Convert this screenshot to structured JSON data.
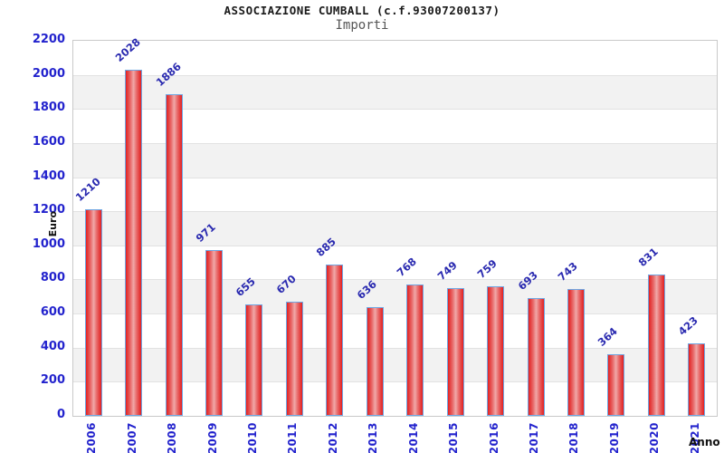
{
  "chart_data": {
    "type": "bar",
    "title": "ASSOCIAZIONE CUMBALL (c.f.93007200137)",
    "subtitle": "Importi",
    "xlabel": "Anno",
    "ylabel": "Euro",
    "categories": [
      "2006",
      "2007",
      "2008",
      "2009",
      "2010",
      "2011",
      "2012",
      "2013",
      "2014",
      "2015",
      "2016",
      "2017",
      "2018",
      "2019",
      "2020",
      "2021"
    ],
    "values": [
      1210,
      2028,
      1886,
      971,
      655,
      670,
      885,
      636,
      768,
      749,
      759,
      693,
      743,
      364,
      831,
      423
    ],
    "ylim": [
      0,
      2200
    ],
    "ytick_step": 200,
    "grid": "alternating-horizontal-bands",
    "legend": "none",
    "colors": {
      "bar_edge": "#e32020",
      "bar_center": "#f0a8a8",
      "bar_border": "#6fa6e2",
      "tick_label": "#2323cd",
      "value_label": "#2a2ab0",
      "band_gray": "#f2f2f2",
      "band_white": "#ffffff",
      "grid_line": "#e2e2e2",
      "plot_border": "#c9c9c9",
      "title_color": "#1a1a1a",
      "subtitle_color": "#555555",
      "axis_title_color": "#111111"
    }
  }
}
